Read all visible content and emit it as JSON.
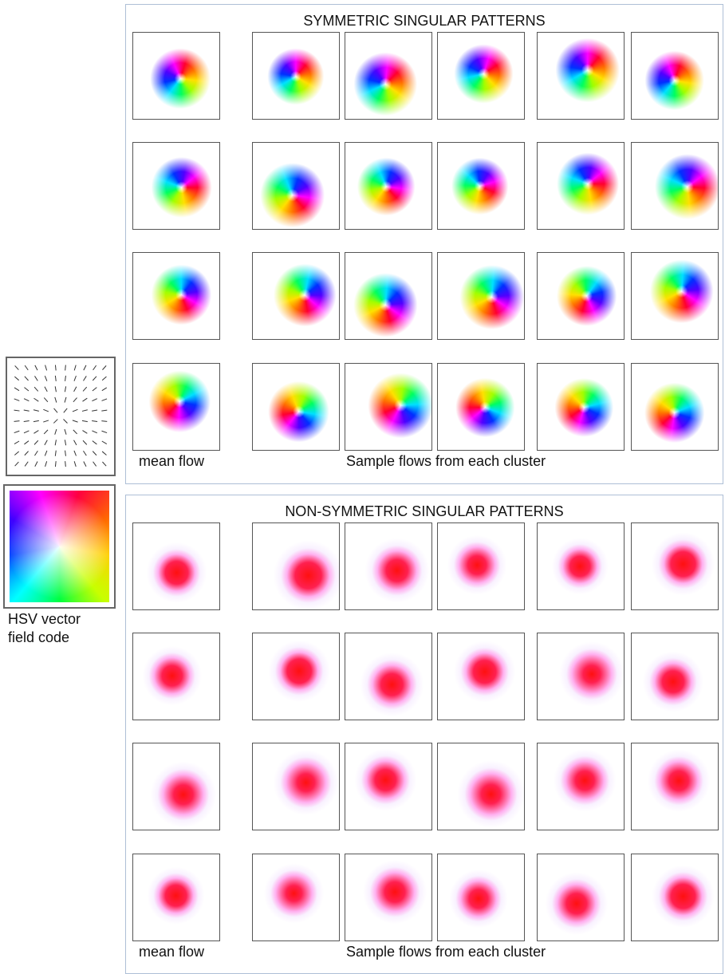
{
  "panels": [
    {
      "title": "SYMMETRIC SINGULAR PATTERNS",
      "mean_caption": "mean flow",
      "samples_caption": "Sample flows from each cluster"
    },
    {
      "title": "NON-SYMMETRIC SINGULAR PATTERNS",
      "mean_caption": "mean flow",
      "samples_caption": "Sample flows from each cluster"
    }
  ],
  "legend": {
    "caption": "HSV vector field code"
  }
}
